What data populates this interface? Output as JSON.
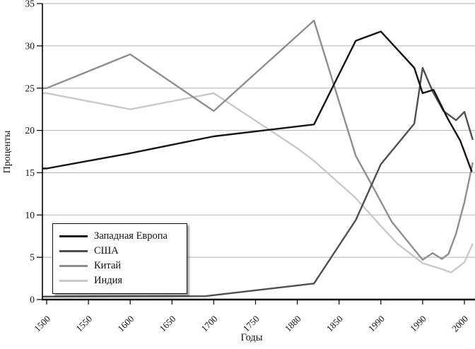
{
  "chart_data": {
    "type": "line",
    "title": "",
    "xlabel": "Годы",
    "ylabel": "Проценты",
    "xlim": [
      1495,
      2012
    ],
    "ylim": [
      0,
      35
    ],
    "grid": true,
    "legend_position": "lower-left",
    "y_ticks": [
      0,
      5,
      10,
      15,
      20,
      25,
      30,
      35
    ],
    "x_tick_labels": [
      "1500",
      "1550",
      "1600",
      "1650",
      "1700",
      "1750",
      "1880",
      "1850",
      "1990",
      "1990",
      "2000"
    ],
    "series": [
      {
        "name": "Западная Европа",
        "color": "#151515",
        "points": [
          [
            1500,
            15.5
          ],
          [
            1550,
            16.4
          ],
          [
            1600,
            17.3
          ],
          [
            1650,
            18.3
          ],
          [
            1700,
            19.3
          ],
          [
            1820,
            20.7
          ],
          [
            1870,
            30.6
          ],
          [
            1900,
            31.7
          ],
          [
            1940,
            27.4
          ],
          [
            1950,
            24.4
          ],
          [
            1963,
            24.8
          ],
          [
            1980,
            21.4
          ],
          [
            1995,
            18.8
          ],
          [
            2009,
            15.1
          ]
        ]
      },
      {
        "name": "США",
        "color": "#4f4f4f",
        "points": [
          [
            1500,
            0.35
          ],
          [
            1690,
            0.4
          ],
          [
            1820,
            1.9
          ],
          [
            1870,
            9.4
          ],
          [
            1900,
            16.0
          ],
          [
            1940,
            20.8
          ],
          [
            1950,
            27.4
          ],
          [
            1962,
            24.6
          ],
          [
            1975,
            22.3
          ],
          [
            1990,
            21.2
          ],
          [
            2000,
            22.2
          ],
          [
            2010,
            18.9
          ]
        ]
      },
      {
        "name": "Китай",
        "color": "#8e8e8e",
        "points": [
          [
            1500,
            25.0
          ],
          [
            1600,
            29.0
          ],
          [
            1700,
            22.3
          ],
          [
            1820,
            33.0
          ],
          [
            1870,
            17.0
          ],
          [
            1890,
            13.4
          ],
          [
            1913,
            9.2
          ],
          [
            1950,
            4.7
          ],
          [
            1962,
            5.5
          ],
          [
            1973,
            4.8
          ],
          [
            1981,
            5.4
          ],
          [
            1990,
            7.8
          ],
          [
            2000,
            11.5
          ],
          [
            2010,
            16.2
          ]
        ]
      },
      {
        "name": "Индия",
        "color": "#c9c9c9",
        "points": [
          [
            1500,
            24.4
          ],
          [
            1600,
            22.5
          ],
          [
            1700,
            24.4
          ],
          [
            1800,
            17.9
          ],
          [
            1820,
            16.4
          ],
          [
            1870,
            12.0
          ],
          [
            1900,
            8.7
          ],
          [
            1920,
            6.6
          ],
          [
            1950,
            4.3
          ],
          [
            1973,
            3.6
          ],
          [
            1984,
            3.2
          ],
          [
            2000,
            4.4
          ],
          [
            2010,
            6.6
          ]
        ]
      }
    ]
  }
}
